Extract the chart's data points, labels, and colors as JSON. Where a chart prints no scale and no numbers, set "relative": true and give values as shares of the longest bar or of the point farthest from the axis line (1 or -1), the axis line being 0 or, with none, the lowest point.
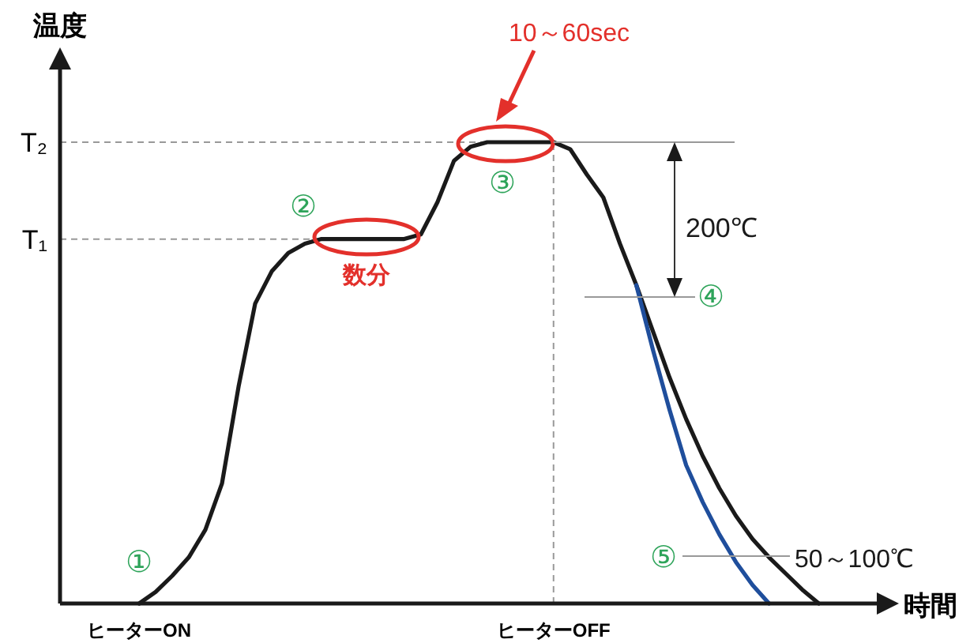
{
  "chart_data": {
    "type": "line",
    "relative": true,
    "xlabel": "時間",
    "ylabel": "温度",
    "categories": [
      "ヒーターON",
      null,
      null,
      null,
      null,
      null,
      null,
      null,
      null,
      null,
      null,
      null,
      null,
      null,
      null,
      null,
      null,
      null,
      null,
      null,
      null,
      null,
      null,
      null,
      null,
      "ヒーターOFF",
      null,
      null,
      null,
      null,
      null,
      null,
      null,
      null,
      null,
      null,
      null,
      null,
      null,
      null,
      null,
      null
    ],
    "marker": "none",
    "line_style": "solid",
    "grid": false,
    "series": [
      {
        "color": "#1a1a1a",
        "values": [
          0,
          0.025,
          0.06,
          0.1,
          0.16,
          0.26,
          0.47,
          0.65,
          0.72,
          0.76,
          0.78,
          0.79,
          0.79,
          0.79,
          0.79,
          0.79,
          0.79,
          0.8,
          0.87,
          0.96,
          0.99,
          1,
          1,
          1,
          1,
          1,
          0.985,
          0.93,
          0.88,
          0.78,
          0.69,
          0.59,
          0.49,
          0.4,
          0.32,
          0.25,
          0.19,
          0.14,
          0.1,
          0.065,
          0.03,
          0
        ]
      },
      {
        "color": "#1f4e9c",
        "values": [
          null,
          null,
          null,
          null,
          null,
          null,
          null,
          null,
          null,
          null,
          null,
          null,
          null,
          null,
          null,
          null,
          null,
          null,
          null,
          null,
          null,
          null,
          null,
          null,
          null,
          null,
          null,
          null,
          null,
          null,
          0.69,
          0.55,
          0.42,
          0.3,
          0.22,
          0.15,
          0.09,
          0.04,
          0,
          null,
          null,
          null
        ]
      }
    ],
    "ref_lines": [
      {
        "axis": "y",
        "value": 0.79,
        "label": "T₁",
        "color": "#999999",
        "line_style": "dashed"
      },
      {
        "axis": "y",
        "value": 1,
        "label": "T₂",
        "color": "#999999",
        "line_style": "dashed"
      },
      {
        "axis": "x",
        "value": "ヒーターOFF",
        "color": "#999999",
        "line_style": "dashed"
      }
    ],
    "annotations": [
      "①",
      "②",
      "数分",
      "③",
      "10～60sec",
      "200℃",
      "④",
      "⑤",
      "50～100℃"
    ]
  }
}
